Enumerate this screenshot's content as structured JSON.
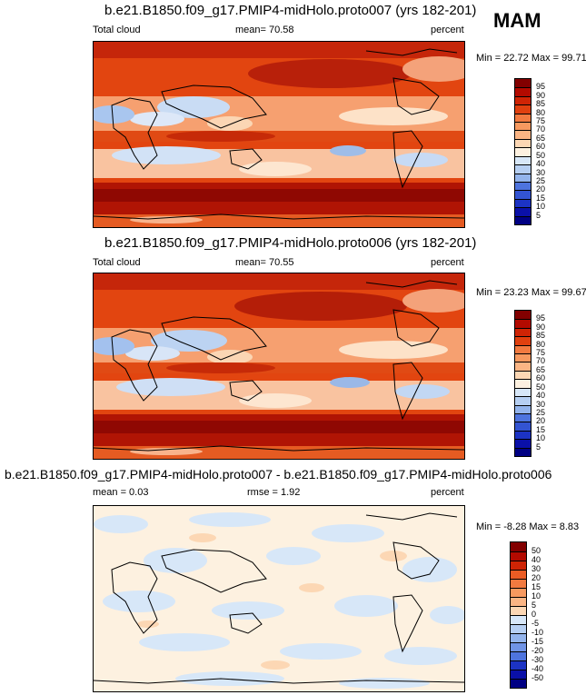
{
  "season": "MAM",
  "panels": [
    {
      "title": "b.e21.B1850.f09_g17.PMIP4-midHolo.proto007 (yrs 182-201)",
      "left_label": "Total cloud",
      "center_label": "mean=  70.58",
      "right_label": "percent",
      "minmax": "Min =  22.72 Max =  99.71",
      "colorbar": {
        "colors": [
          "#820000",
          "#b30a00",
          "#cf2405",
          "#e0400f",
          "#eb5c24",
          "#f27a40",
          "#f7995f",
          "#fbb584",
          "#fcd7b4",
          "#fdf1e0",
          "#d7e7f8",
          "#b6cff2",
          "#93b4ec",
          "#7094e6",
          "#4e74de",
          "#3354d2",
          "#1c33c4",
          "#0a10a8",
          "#000083"
        ],
        "labels": [
          "95",
          "90",
          "85",
          "80",
          "75",
          "70",
          "65",
          "60",
          "50",
          "40",
          "30",
          "25",
          "20",
          "15",
          "10",
          "5"
        ]
      }
    },
    {
      "title": "b.e21.B1850.f09_g17.PMIP4-midHolo.proto006 (yrs 182-201)",
      "left_label": "Total cloud",
      "center_label": "mean=  70.55",
      "right_label": "percent",
      "minmax": "Min =  23.23 Max =  99.67",
      "colorbar": {
        "colors": [
          "#820000",
          "#b30a00",
          "#cf2405",
          "#e0400f",
          "#eb5c24",
          "#f27a40",
          "#f7995f",
          "#fbb584",
          "#fcd7b4",
          "#fdf1e0",
          "#d7e7f8",
          "#b6cff2",
          "#93b4ec",
          "#7094e6",
          "#4e74de",
          "#3354d2",
          "#1c33c4",
          "#0a10a8",
          "#000083"
        ],
        "labels": [
          "95",
          "90",
          "85",
          "80",
          "75",
          "70",
          "65",
          "60",
          "50",
          "40",
          "30",
          "25",
          "20",
          "15",
          "10",
          "5"
        ]
      }
    },
    {
      "title": "b.e21.B1850.f09_g17.PMIP4-midHolo.proto007 - b.e21.B1850.f09_g17.PMIP4-midHolo.proto006",
      "left_label": "mean =   0.03",
      "center_label": "rmse =   1.92",
      "right_label": "percent",
      "minmax": "Min =  -8.28 Max =   8.83",
      "colorbar": {
        "colors": [
          "#820000",
          "#b30a00",
          "#cf2405",
          "#e0400f",
          "#eb5c24",
          "#f27a40",
          "#f7995f",
          "#fbb584",
          "#fcd7b4",
          "#fdf1e0",
          "#d7e7f8",
          "#b6cff2",
          "#93b4ec",
          "#7094e6",
          "#4e74de",
          "#3354d2",
          "#1c33c4",
          "#0a10a8",
          "#000083"
        ],
        "labels": [
          "50",
          "40",
          "30",
          "20",
          "15",
          "10",
          "5",
          "0",
          "-5",
          "-10",
          "-15",
          "-20",
          "-30",
          "-40",
          "-50"
        ]
      }
    }
  ]
}
